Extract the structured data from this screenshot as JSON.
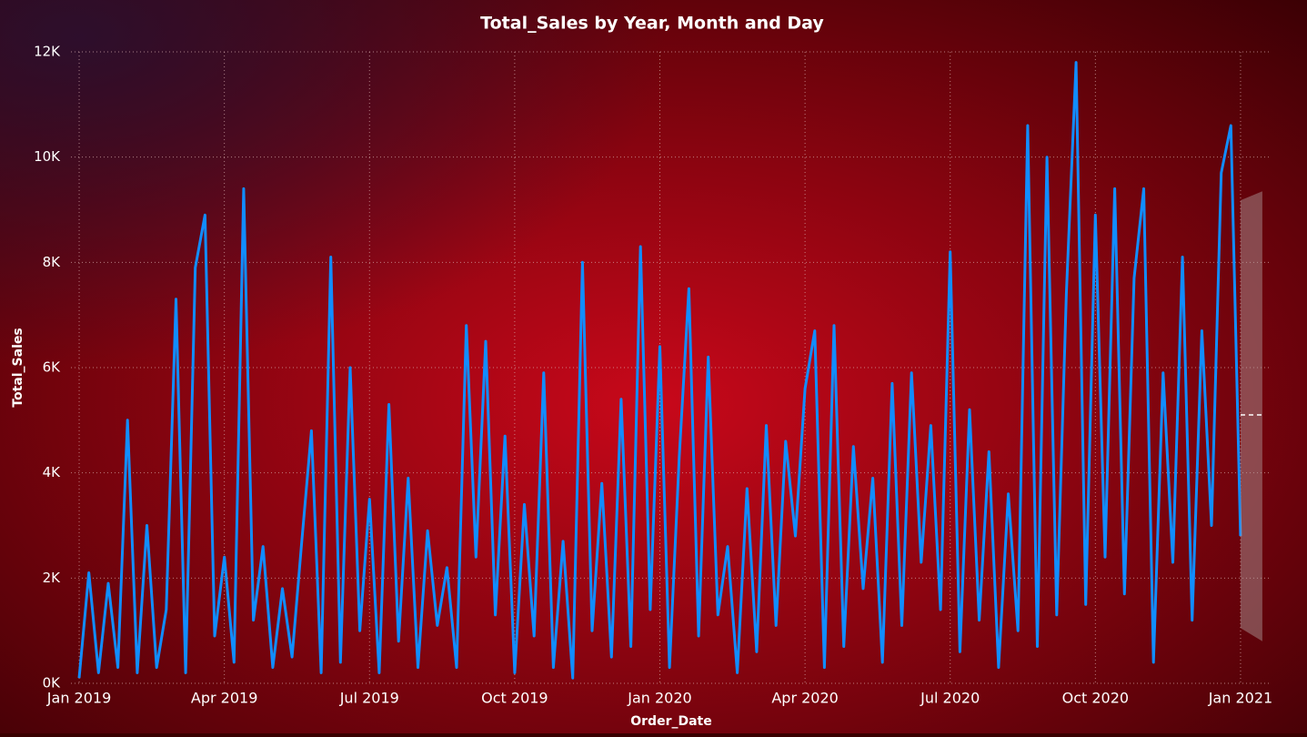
{
  "chart_data": {
    "type": "line",
    "title": "Total_Sales by Year, Month and Day",
    "x_label": "Order_Date",
    "y_label": "Total_Sales",
    "xlim": [
      -0.17,
      24.64
    ],
    "ylim": [
      0,
      12000
    ],
    "grid": true,
    "xticks": [
      {
        "value": 0,
        "label": "Jan 2019"
      },
      {
        "value": 3,
        "label": "Apr 2019"
      },
      {
        "value": 6,
        "label": "Jul 2019"
      },
      {
        "value": 9,
        "label": "Oct 2019"
      },
      {
        "value": 12,
        "label": "Jan 2020"
      },
      {
        "value": 15,
        "label": "Apr 2020"
      },
      {
        "value": 18,
        "label": "Jul 2020"
      },
      {
        "value": 21,
        "label": "Oct 2020"
      },
      {
        "value": 24,
        "label": "Jan 2021"
      }
    ],
    "yticks": [
      {
        "value": 0,
        "label": "0K"
      },
      {
        "value": 2000,
        "label": "2K"
      },
      {
        "value": 4000,
        "label": "4K"
      },
      {
        "value": 6000,
        "label": "6K"
      },
      {
        "value": 8000,
        "label": "8K"
      },
      {
        "value": 10000,
        "label": "10K"
      },
      {
        "value": 12000,
        "label": "12K"
      }
    ],
    "x": [
      0,
      0.2,
      0.4,
      0.6,
      0.8,
      1,
      1.2,
      1.4,
      1.6,
      1.8,
      2,
      2.2,
      2.4,
      2.6,
      2.8,
      3,
      3.2,
      3.4,
      3.6,
      3.8,
      4,
      4.2,
      4.4,
      4.6,
      4.8,
      5,
      5.2,
      5.4,
      5.6,
      5.8,
      6,
      6.2,
      6.4,
      6.6,
      6.8,
      7,
      7.2,
      7.4,
      7.6,
      7.8,
      8,
      8.2,
      8.4,
      8.6,
      8.8,
      9,
      9.2,
      9.4,
      9.6,
      9.8,
      10,
      10.2,
      10.4,
      10.6,
      10.8,
      11,
      11.2,
      11.4,
      11.6,
      11.8,
      12,
      12.2,
      12.4,
      12.6,
      12.8,
      13,
      13.2,
      13.4,
      13.6,
      13.8,
      14,
      14.2,
      14.4,
      14.6,
      14.8,
      15,
      15.2,
      15.4,
      15.6,
      15.8,
      16,
      16.2,
      16.4,
      16.6,
      16.8,
      17,
      17.2,
      17.4,
      17.6,
      17.8,
      18,
      18.2,
      18.4,
      18.6,
      18.8,
      19,
      19.2,
      19.4,
      19.6,
      19.8,
      20,
      20.2,
      20.4,
      20.6,
      20.8,
      21,
      21.2,
      21.4,
      21.6,
      21.8,
      22,
      22.2,
      22.4,
      22.6,
      22.8,
      23,
      23.2,
      23.4,
      23.6,
      23.8,
      24
    ],
    "series": [
      {
        "color": "#118dff",
        "values": [
          100,
          2100,
          200,
          1900,
          300,
          5000,
          200,
          3000,
          300,
          1400,
          7300,
          200,
          7900,
          8900,
          900,
          2400,
          400,
          9400,
          1200,
          2600,
          300,
          1800,
          500,
          2700,
          4800,
          200,
          8100,
          400,
          6000,
          1000,
          3500,
          200,
          5300,
          800,
          3900,
          300,
          2900,
          1100,
          2200,
          300,
          6800,
          2400,
          6500,
          1300,
          4700,
          200,
          3400,
          900,
          5900,
          300,
          2700,
          100,
          8000,
          1000,
          3800,
          500,
          5400,
          700,
          8300,
          1400,
          6400,
          300,
          4300,
          7500,
          900,
          6200,
          1300,
          2600,
          200,
          3700,
          600,
          4900,
          1100,
          4600,
          2800,
          5600,
          6700,
          300,
          6800,
          700,
          4500,
          1800,
          3900,
          400,
          5700,
          1100,
          5900,
          2300,
          4900,
          1400,
          8200,
          600,
          5200,
          1200,
          4400,
          300,
          3600,
          1000,
          10600,
          700,
          10000,
          1300,
          7400,
          11800,
          1500,
          8900,
          2400,
          9400,
          1700,
          7700,
          9400,
          400,
          5900,
          2300,
          8100,
          1200,
          6700,
          3000,
          9700,
          10600,
          2800
        ]
      }
    ],
    "forecast": {
      "x": [
        24,
        24.45
      ],
      "upper": [
        9180,
        9350
      ],
      "lower": [
        1050,
        800
      ],
      "value": [
        5100,
        5100
      ]
    }
  }
}
